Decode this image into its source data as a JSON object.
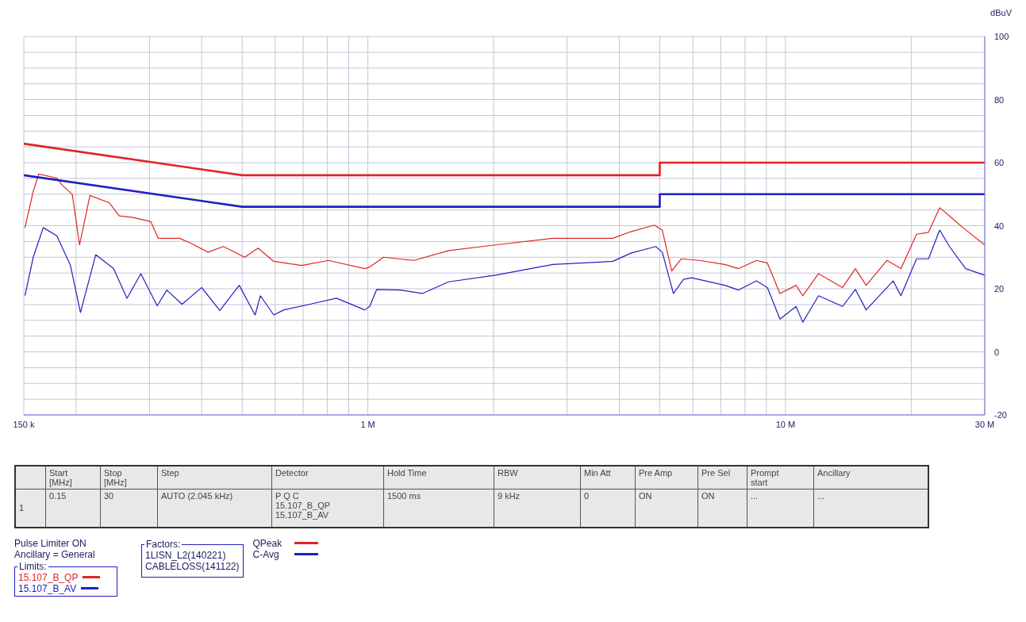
{
  "chart_data": {
    "type": "line",
    "ylabel": "dBuV",
    "legend_title": "Limits:",
    "legend": "bottom left",
    "grid": true,
    "log": "x",
    "xlim": [
      0.15,
      30
    ],
    "xticks": [
      {
        "value": 0.15,
        "label": "150 k"
      },
      {
        "value": 0.2,
        "label": null
      },
      {
        "value": 0.3,
        "label": null
      },
      {
        "value": 0.4,
        "label": null
      },
      {
        "value": 0.5,
        "label": null
      },
      {
        "value": 0.6,
        "label": null
      },
      {
        "value": 0.7,
        "label": null
      },
      {
        "value": 0.8,
        "label": null
      },
      {
        "value": 0.9,
        "label": null
      },
      {
        "value": 1,
        "label": "1 M"
      },
      {
        "value": 2,
        "label": null
      },
      {
        "value": 3,
        "label": null
      },
      {
        "value": 4,
        "label": null
      },
      {
        "value": 5,
        "label": null
      },
      {
        "value": 6,
        "label": null
      },
      {
        "value": 7,
        "label": null
      },
      {
        "value": 8,
        "label": null
      },
      {
        "value": 9,
        "label": null
      },
      {
        "value": 10,
        "label": "10 M"
      },
      {
        "value": 20,
        "label": null
      },
      {
        "value": 30,
        "label": "30 M"
      }
    ],
    "ylim": [
      -20,
      100
    ],
    "yticks": [
      -20,
      {
        "value": -15,
        "label": null
      },
      {
        "value": -10,
        "label": null
      },
      {
        "value": -5,
        "label": null
      },
      0,
      {
        "value": 5,
        "label": null
      },
      {
        "value": 10,
        "label": null
      },
      {
        "value": 15,
        "label": null
      },
      20,
      {
        "value": 25,
        "label": null
      },
      {
        "value": 30,
        "label": null
      },
      {
        "value": 35,
        "label": null
      },
      40,
      {
        "value": 45,
        "label": null
      },
      {
        "value": 50,
        "label": null
      },
      {
        "value": 55,
        "label": null
      },
      60,
      {
        "value": 65,
        "label": null
      },
      {
        "value": 70,
        "label": null
      },
      {
        "value": 75,
        "label": null
      },
      80,
      {
        "value": 85,
        "label": null
      },
      {
        "value": 90,
        "label": null
      },
      {
        "value": 95,
        "label": null
      },
      100
    ],
    "series": [
      {
        "name": "QPeak",
        "color": "#e02424",
        "x": [
          0.151,
          0.158,
          0.163,
          0.18,
          0.185,
          0.196,
          0.204,
          0.216,
          0.24,
          0.254,
          0.274,
          0.302,
          0.315,
          0.354,
          0.38,
          0.414,
          0.451,
          0.507,
          0.546,
          0.595,
          0.695,
          0.805,
          0.983,
          1.01,
          1.09,
          1.29,
          1.56,
          2.02,
          2.77,
          3.86,
          4.26,
          4.85,
          5.07,
          5.34,
          5.63,
          6.22,
          7.16,
          7.72,
          8.52,
          9.05,
          9.7,
          10.6,
          11,
          12,
          13.7,
          14.7,
          15.6,
          17.5,
          18.9,
          20.6,
          22,
          23.4,
          24.7,
          26.6,
          30
        ],
        "values": [
          39.4,
          50.9,
          56.4,
          55.1,
          53,
          49.9,
          33.9,
          49.6,
          47.3,
          43.1,
          42.6,
          41.3,
          36,
          36,
          34.2,
          31.6,
          33.4,
          30,
          32.9,
          28.7,
          27.4,
          29,
          26.4,
          26.9,
          30,
          29,
          32.1,
          33.9,
          36,
          36,
          38.1,
          40.2,
          38.6,
          25.6,
          29.5,
          29,
          27.7,
          26.4,
          29,
          28.2,
          18.5,
          21.1,
          17.8,
          24.8,
          20.4,
          26.4,
          21.1,
          29,
          26.4,
          37.3,
          37.9,
          45.7,
          43.1,
          39.4,
          33.9
        ]
      },
      {
        "name": "C-Avg",
        "color": "#2020c0",
        "x": [
          0.151,
          0.158,
          0.167,
          0.18,
          0.194,
          0.205,
          0.223,
          0.246,
          0.265,
          0.286,
          0.313,
          0.33,
          0.359,
          0.4,
          0.442,
          0.492,
          0.537,
          0.553,
          0.595,
          0.629,
          0.726,
          0.841,
          0.983,
          1.01,
          1.05,
          1.2,
          1.35,
          1.56,
          2.02,
          2.77,
          3.86,
          4.26,
          4.89,
          5.07,
          5.39,
          5.7,
          5.96,
          7.16,
          7.72,
          8.52,
          9.05,
          9.7,
          10.6,
          11,
          12,
          13.7,
          14.7,
          15.6,
          18.1,
          18.9,
          20.6,
          22,
          23.4,
          24.7,
          27,
          30
        ],
        "values": [
          17.8,
          30,
          39.4,
          36.8,
          27.4,
          12.5,
          30.8,
          26.4,
          17,
          24.8,
          14.6,
          19.6,
          15.1,
          20.4,
          13.1,
          21.1,
          11.7,
          17.8,
          11.7,
          13.3,
          15.1,
          17,
          13.3,
          14.4,
          19.8,
          19.6,
          18.5,
          22.2,
          24.3,
          27.7,
          28.7,
          31.3,
          33.4,
          31.6,
          18.5,
          23,
          23.5,
          21.1,
          19.6,
          22.5,
          20.4,
          10.4,
          14.4,
          9.4,
          17.8,
          14.4,
          19.8,
          13.3,
          22.5,
          17.8,
          29.5,
          29.5,
          38.6,
          33.4,
          26.4,
          24.3
        ]
      },
      {
        "name": "15.107_B_QP",
        "color": "#e02424",
        "x": [
          0.15,
          0.5,
          5,
          5,
          30
        ],
        "values": [
          66,
          56,
          56,
          60,
          60
        ]
      },
      {
        "name": "15.107_B_AV",
        "color": "#2020c0",
        "x": [
          0.15,
          0.5,
          5,
          5,
          30
        ],
        "values": [
          56,
          46,
          46,
          50,
          50
        ]
      }
    ],
    "annotations": [
      "Pulse Limiter ON",
      "Ancillary = General",
      "Factors:",
      "1LISN_L2(140221)",
      "CABLELOSS(141122)",
      "Start\n[MHz]",
      "Stop\n[MHz]",
      "Step",
      "Detector",
      "Hold Time",
      "RBW",
      "Min Att",
      "Pre Amp",
      "Pre Sel",
      "Prompt\nstart",
      "Ancillary",
      "1",
      "0.15",
      "30",
      "AUTO (2.045 kHz)",
      "P Q C\n15.107_B_QP\n15.107_B_AV",
      "1500 ms",
      "9 kHz",
      "0",
      "ON",
      "ON",
      "...",
      "..."
    ]
  }
}
